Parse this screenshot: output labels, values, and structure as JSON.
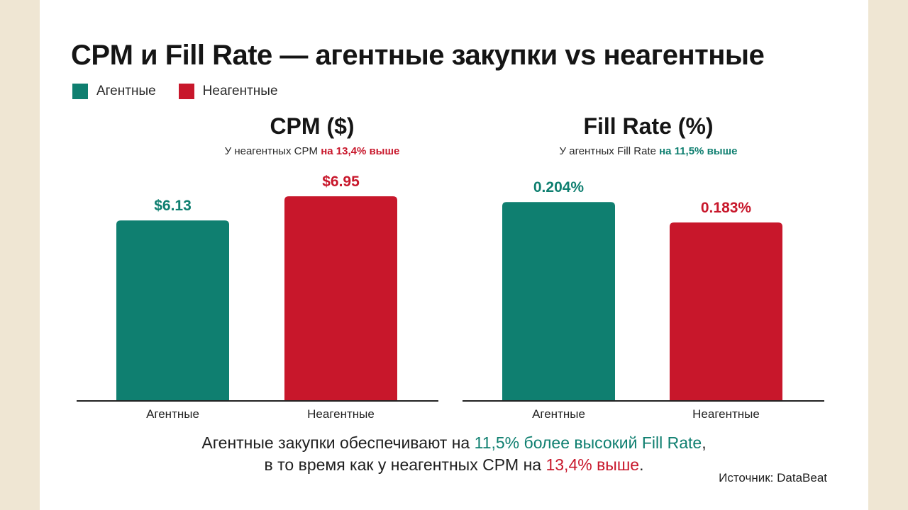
{
  "title": "CPM и Fill Rate — агентные закупки vs неагентные",
  "legend": [
    {
      "label": "Агентные",
      "color": "#0f7f70"
    },
    {
      "label": "Неагентные",
      "color": "#c8172b"
    }
  ],
  "panels": {
    "cpm": {
      "title": "CPM ($)",
      "subtitle_prefix": "У неагентных CPM ",
      "subtitle_highlight": "на 13,4% выше"
    },
    "fill": {
      "title": "Fill Rate (%)",
      "subtitle_prefix": "У агентных Fill Rate ",
      "subtitle_highlight": "на 11,5% выше"
    }
  },
  "chart_data": [
    {
      "type": "bar",
      "title": "CPM ($)",
      "categories": [
        "Агентные",
        "Неагентные"
      ],
      "values": [
        6.13,
        6.95
      ],
      "value_labels": [
        "$6.13",
        "$6.95"
      ],
      "colors": [
        "#0f7f70",
        "#c8172b"
      ],
      "ylim": [
        0,
        7.7
      ]
    },
    {
      "type": "bar",
      "title": "Fill Rate (%)",
      "categories": [
        "Агентные",
        "Неагентные"
      ],
      "values": [
        0.204,
        0.183
      ],
      "value_labels": [
        "0.204%",
        "0.183%"
      ],
      "colors": [
        "#0f7f70",
        "#c8172b"
      ],
      "ylim": [
        0,
        0.2325
      ]
    }
  ],
  "bottom_note": {
    "line1_prefix": "Агентные закупки обеспечивают на ",
    "line1_highlight": "11,5% более высокий Fill Rate",
    "line1_suffix": ",",
    "line2_prefix": "в то время как у неагентных CPM на ",
    "line2_highlight": "13,4% выше",
    "line2_suffix": "."
  },
  "source": "Источник: DataBeat",
  "colors": {
    "agent": "#0f7f70",
    "nonagent": "#c8172b",
    "axis": "#222222"
  }
}
